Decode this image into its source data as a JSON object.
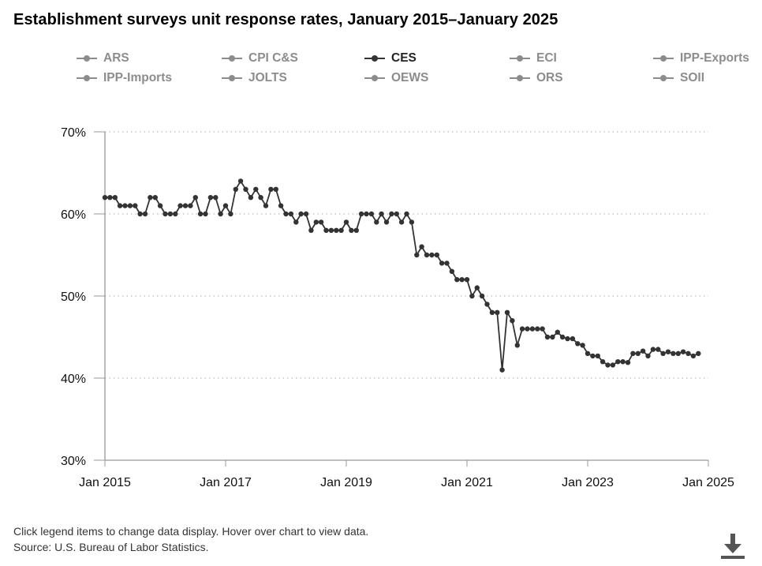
{
  "title": "Establishment surveys unit response rates, January 2015–January 2025",
  "legend": [
    {
      "label": "ARS",
      "active": false
    },
    {
      "label": "CPI C&S",
      "active": false
    },
    {
      "label": "CES",
      "active": true
    },
    {
      "label": "ECI",
      "active": false
    },
    {
      "label": "IPP-Exports",
      "active": false
    },
    {
      "label": "IPP-Imports",
      "active": false
    },
    {
      "label": "JOLTS",
      "active": false
    },
    {
      "label": "OEWS",
      "active": false
    },
    {
      "label": "ORS",
      "active": false
    },
    {
      "label": "SOII",
      "active": false
    }
  ],
  "footer": {
    "note": "Click legend items to change data display. Hover over chart to view data.",
    "source": "Source: U.S. Bureau of Labor Statistics."
  },
  "colors": {
    "active_series": "#333333",
    "inactive_legend": "#8c8c8c",
    "grid": "#bbbbbb",
    "axis": "#999999"
  },
  "icons": {
    "download": "download-icon"
  },
  "chart_data": {
    "type": "line",
    "title": "Establishment surveys unit response rates, January 2015–January 2025",
    "y_unit": "%",
    "ylim": [
      30,
      70
    ],
    "yticks": [
      30,
      40,
      50,
      60,
      70
    ],
    "ytick_labels": [
      "30%",
      "40%",
      "50%",
      "60%",
      "70%"
    ],
    "xlim": [
      "2015-01",
      "2025-01"
    ],
    "xticks": [
      "2015-01",
      "2017-01",
      "2019-01",
      "2021-01",
      "2023-01",
      "2025-01"
    ],
    "xtick_labels": [
      "Jan 2015",
      "Jan 2017",
      "Jan 2019",
      "Jan 2021",
      "Jan 2023",
      "Jan 2025"
    ],
    "grid": "horizontal dotted",
    "legend_position": "top",
    "series": [
      {
        "name": "CES",
        "start": "2015-01",
        "frequency": "monthly",
        "values": [
          62,
          62,
          62,
          61,
          61,
          61,
          61,
          60,
          60,
          62,
          62,
          61,
          60,
          60,
          60,
          61,
          61,
          61,
          62,
          60,
          60,
          62,
          62,
          60,
          61,
          60,
          63,
          64,
          63,
          62,
          63,
          62,
          61,
          63,
          63,
          61,
          60,
          60,
          59,
          60,
          60,
          58,
          59,
          59,
          58,
          58,
          58,
          58,
          59,
          58,
          58,
          60,
          60,
          60,
          59,
          60,
          59,
          60,
          60,
          59,
          60,
          59,
          55,
          56,
          55,
          55,
          55,
          54,
          54,
          53,
          52,
          52,
          52,
          50,
          51,
          50,
          49,
          48,
          48,
          41,
          48,
          47,
          44,
          46,
          46,
          46,
          46,
          46,
          45,
          45,
          45.6,
          45,
          44.8,
          44.8,
          44.2,
          44,
          43,
          42.7,
          42.7,
          42,
          41.6,
          41.6,
          42,
          42,
          41.9,
          43,
          43,
          43.3,
          42.7,
          43.5,
          43.5,
          43,
          43.2,
          43,
          43,
          43.2,
          43,
          42.7,
          43
        ]
      }
    ]
  }
}
